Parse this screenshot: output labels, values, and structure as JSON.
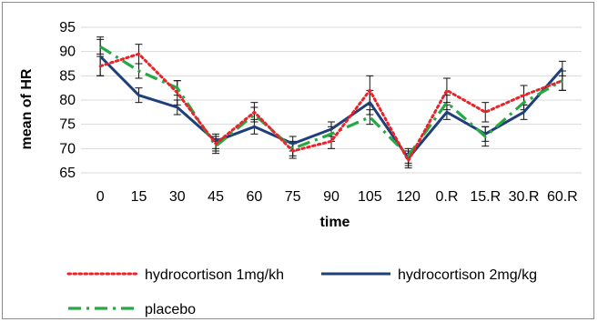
{
  "chart_data": {
    "type": "line",
    "xlabel": "time",
    "ylabel": "mean of HR",
    "ylim": [
      65,
      95
    ],
    "yticks": [
      65,
      70,
      75,
      80,
      85,
      90,
      95
    ],
    "grid": "horizontal",
    "legend_position": "bottom",
    "categories": [
      "0",
      "15",
      "30",
      "45",
      "60",
      "75",
      "90",
      "105",
      "120",
      "0.R",
      "15.R",
      "30.R",
      "60.R"
    ],
    "series": [
      {
        "name": "hydrocortison 1mg/kh",
        "color": "#e8232a",
        "style": "dotted",
        "values": [
          87,
          89.5,
          81.5,
          71,
          77.5,
          69.5,
          71.5,
          82,
          67.5,
          82,
          77.5,
          81,
          84
        ],
        "errors": [
          2,
          2,
          2.5,
          1.5,
          2,
          1.5,
          1.5,
          3,
          1.5,
          2.5,
          2,
          2,
          2
        ]
      },
      {
        "name": "hydrocortison 2mg/kg",
        "color": "#1f3f7a",
        "style": "solid",
        "values": [
          89,
          81,
          78.5,
          71.5,
          74.5,
          71,
          74,
          79.5,
          68,
          77.5,
          73,
          77.5,
          86.5
        ],
        "errors": [
          4,
          1.5,
          1.5,
          1.5,
          1.5,
          1.5,
          1.5,
          2.5,
          1.5,
          1.5,
          1.5,
          1.5,
          1.5
        ]
      },
      {
        "name": "placebo",
        "color": "#27a844",
        "style": "dash-dot",
        "values": [
          91,
          86,
          82.5,
          70.5,
          77,
          70,
          73,
          76.5,
          68.5,
          79.5,
          72.5,
          79.5,
          84
        ],
        "errors": [
          1.5,
          1.5,
          1.5,
          1.5,
          1.5,
          1.5,
          1.5,
          1.5,
          1.5,
          1.5,
          2,
          1.5,
          2
        ]
      }
    ]
  }
}
